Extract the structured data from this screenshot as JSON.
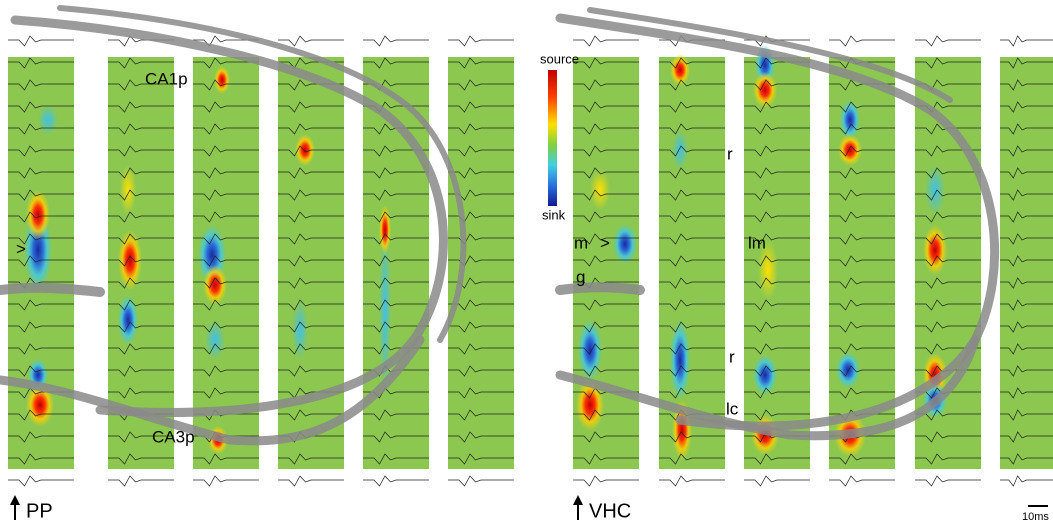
{
  "left_panel": {
    "labels": [
      "CA1p",
      ">",
      "CA3p"
    ],
    "stimulus": "PP"
  },
  "right_panel": {
    "labels": [
      "m",
      ">",
      "g",
      "r",
      "lm",
      "r",
      "lc"
    ],
    "stimulus": "VHC"
  },
  "colorbar": {
    "top": "source",
    "bottom": "sink"
  },
  "scale_bar": "10ms"
}
